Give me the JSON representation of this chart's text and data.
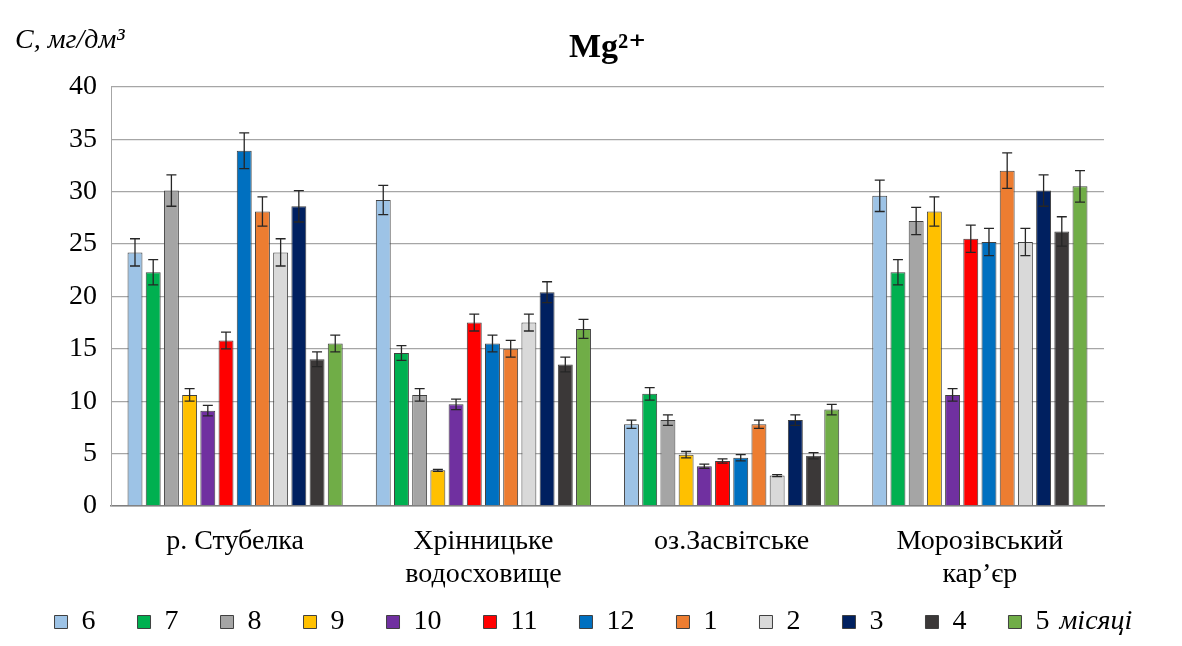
{
  "chart_data": {
    "type": "bar",
    "title": "Mg²⁺",
    "ylabel": "C, мг/дм³",
    "legend_title": "місяці",
    "categories": [
      "р. Стубелка",
      "Хрінницьке водосховище",
      "оз.Засвітське",
      "Морозівський кар’єр"
    ],
    "series": [
      {
        "name": "6",
        "color": "#9dc3e6",
        "values": [
          24.2,
          29.2,
          7.8,
          29.6
        ],
        "errors": [
          1.3,
          1.4,
          0.4,
          1.5
        ]
      },
      {
        "name": "7",
        "color": "#00b050",
        "values": [
          22.3,
          14.6,
          10.7,
          22.3
        ],
        "errors": [
          1.2,
          0.7,
          0.6,
          1.2
        ]
      },
      {
        "name": "8",
        "color": "#a5a5a5",
        "values": [
          30.1,
          10.6,
          8.2,
          27.2
        ],
        "errors": [
          1.5,
          0.6,
          0.5,
          1.3
        ]
      },
      {
        "name": "9",
        "color": "#ffc000",
        "values": [
          10.6,
          3.4,
          4.9,
          28.1
        ],
        "errors": [
          0.6,
          0.1,
          0.3,
          1.4
        ]
      },
      {
        "name": "10",
        "color": "#7030a0",
        "values": [
          9.1,
          9.7,
          3.8,
          10.6
        ],
        "errors": [
          0.5,
          0.5,
          0.2,
          0.6
        ]
      },
      {
        "name": "11",
        "color": "#ff0000",
        "values": [
          15.8,
          17.5,
          4.3,
          25.5
        ],
        "errors": [
          0.8,
          0.8,
          0.2,
          1.3
        ]
      },
      {
        "name": "12",
        "color": "#0070c0",
        "values": [
          33.9,
          15.5,
          4.6,
          25.2
        ],
        "errors": [
          1.7,
          0.8,
          0.3,
          1.3
        ]
      },
      {
        "name": "1",
        "color": "#ed7d31",
        "values": [
          28.1,
          15.0,
          7.8,
          32.0
        ],
        "errors": [
          1.4,
          0.8,
          0.4,
          1.7
        ]
      },
      {
        "name": "2",
        "color": "#d9d9d9",
        "values": [
          24.2,
          17.5,
          2.9,
          25.2
        ],
        "errors": [
          1.3,
          0.8,
          0.1,
          1.3
        ]
      },
      {
        "name": "3",
        "color": "#002060",
        "values": [
          28.6,
          20.4,
          8.2,
          30.1
        ],
        "errors": [
          1.5,
          1.0,
          0.5,
          1.5
        ]
      },
      {
        "name": "4",
        "color": "#3b3838",
        "values": [
          14.0,
          13.5,
          4.8,
          26.2
        ],
        "errors": [
          0.7,
          0.7,
          0.3,
          1.4
        ]
      },
      {
        "name": "5",
        "color": "#70ad47",
        "values": [
          15.5,
          16.9,
          9.2,
          30.5
        ],
        "errors": [
          0.8,
          0.9,
          0.5,
          1.5
        ]
      }
    ],
    "ylim": [
      0,
      40
    ],
    "yticks": [
      0,
      5,
      10,
      15,
      20,
      25,
      30,
      35,
      40
    ],
    "grid": "y",
    "legend": "bottom"
  }
}
